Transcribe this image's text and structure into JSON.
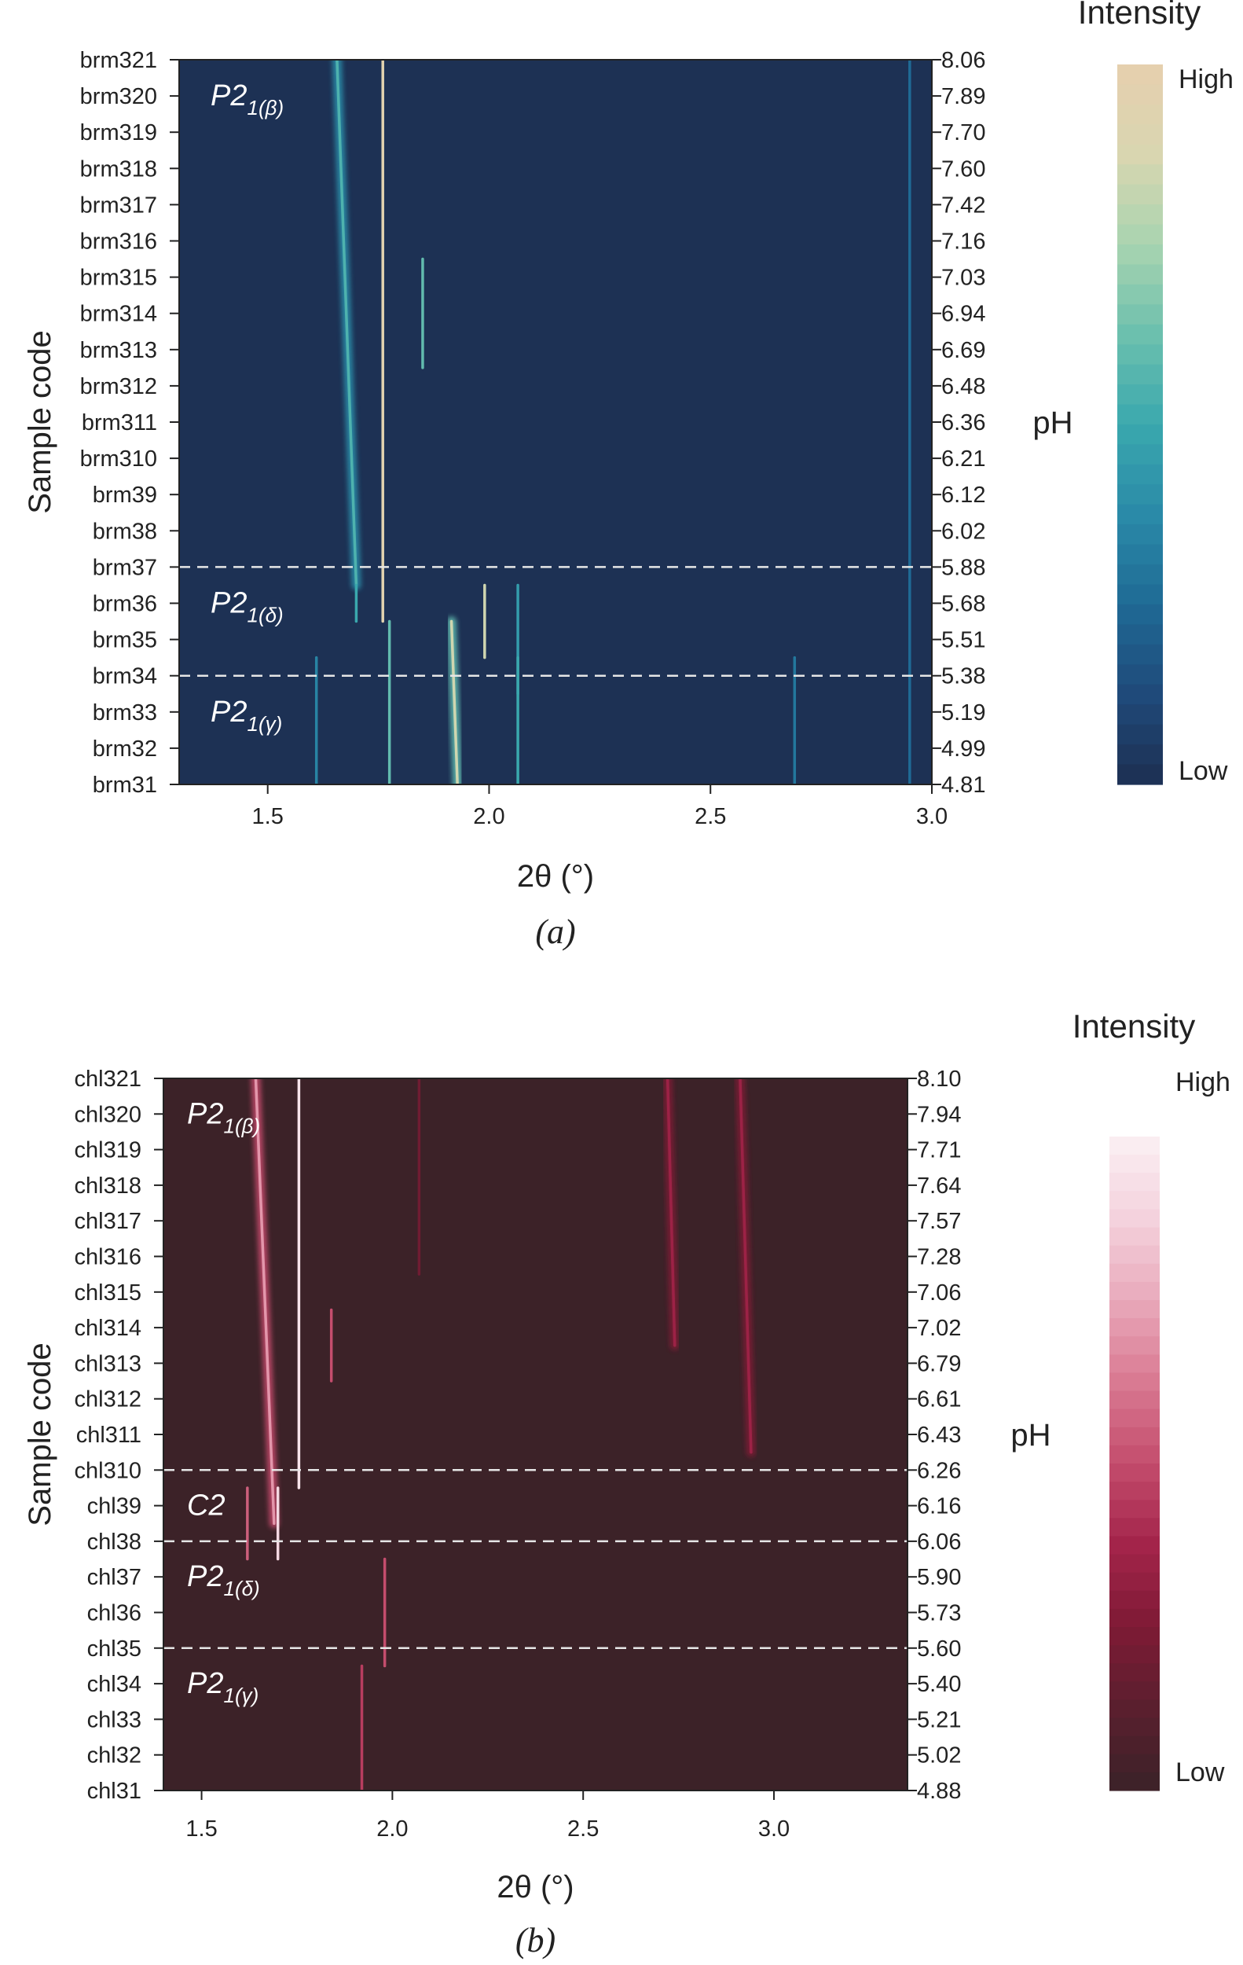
{
  "chart_data": [
    {
      "type": "heatmap",
      "panel_label": "(a)",
      "xlabel": "2θ (°)",
      "ylabel_left": "Sample code",
      "ylabel_right": "pH",
      "xlim": [
        1.3,
        3.0
      ],
      "xticks": [
        "1.5",
        "2.0",
        "2.5",
        "3.0"
      ],
      "xtick_values": [
        1.5,
        2.0,
        2.5,
        3.0
      ],
      "samples": [
        "brm321",
        "brm320",
        "brm319",
        "brm318",
        "brm317",
        "brm316",
        "brm315",
        "brm314",
        "brm313",
        "brm312",
        "brm311",
        "brm310",
        "brm39",
        "brm38",
        "brm37",
        "brm36",
        "brm35",
        "brm34",
        "brm33",
        "brm32",
        "brm31"
      ],
      "ph": [
        "8.06",
        "7.89",
        "7.70",
        "7.60",
        "7.42",
        "7.16",
        "7.03",
        "6.94",
        "6.69",
        "6.48",
        "6.36",
        "6.21",
        "6.12",
        "6.02",
        "5.88",
        "5.68",
        "5.51",
        "5.38",
        "5.19",
        "4.99",
        "4.81"
      ],
      "phase_boundaries": [
        "brm37",
        "brm34"
      ],
      "region_labels": [
        {
          "main": "P2",
          "sub": "1(β)",
          "row": "brm320"
        },
        {
          "main": "P2",
          "sub": "1(δ)",
          "row": "brm36"
        },
        {
          "main": "P2",
          "sub": "1(γ)",
          "row": "brm33"
        }
      ],
      "colorbar": {
        "title": "Intensity",
        "high_label": "High",
        "low_label": "Low",
        "colors": [
          "#1d2f52",
          "#1f4a7a",
          "#1f6a95",
          "#2a8aa8",
          "#3aa8ae",
          "#6cc0ae",
          "#a9d4b0",
          "#d9d6b0",
          "#e7cfae"
        ]
      },
      "background_color": "#1d3154",
      "peaks": [
        {
          "from": "brm321",
          "to": "brm37",
          "x_top": 1.655,
          "x_bottom": 1.7,
          "intensity": 0.55
        },
        {
          "from": "brm321",
          "to": "brm36",
          "x_top": 1.76,
          "x_bottom": 1.76,
          "intensity": 0.95
        },
        {
          "from": "brm315",
          "to": "brm313",
          "x_top": 1.85,
          "x_bottom": 1.85,
          "intensity": 0.6
        },
        {
          "from": "brm36",
          "to": "brm36",
          "x_top": 1.7,
          "x_bottom": 1.7,
          "intensity": 0.5
        },
        {
          "from": "brm36",
          "to": "brm35",
          "x_top": 1.99,
          "x_bottom": 1.99,
          "intensity": 0.85
        },
        {
          "from": "brm36",
          "to": "brm34",
          "x_top": 2.065,
          "x_bottom": 2.065,
          "intensity": 0.45
        },
        {
          "from": "brm35",
          "to": "brm31",
          "x_top": 1.915,
          "x_bottom": 1.93,
          "intensity": 0.85
        },
        {
          "from": "brm35",
          "to": "brm31",
          "x_top": 1.775,
          "x_bottom": 1.775,
          "intensity": 0.6
        },
        {
          "from": "brm34",
          "to": "brm31",
          "x_top": 1.61,
          "x_bottom": 1.61,
          "intensity": 0.35
        },
        {
          "from": "brm34",
          "to": "brm31",
          "x_top": 2.065,
          "x_bottom": 2.065,
          "intensity": 0.5
        },
        {
          "from": "brm34",
          "to": "brm31",
          "x_top": 2.69,
          "x_bottom": 2.69,
          "intensity": 0.3
        },
        {
          "from": "brm321",
          "to": "brm31",
          "x_top": 2.95,
          "x_bottom": 2.95,
          "intensity": 0.25
        }
      ]
    },
    {
      "type": "heatmap",
      "panel_label": "(b)",
      "xlabel": "2θ (°)",
      "ylabel_left": "Sample code",
      "ylabel_right": "pH",
      "xlim": [
        1.4,
        3.35
      ],
      "xticks": [
        "1.5",
        "2.0",
        "2.5",
        "3.0"
      ],
      "xtick_values": [
        1.5,
        2.0,
        2.5,
        3.0
      ],
      "samples": [
        "chl321",
        "chl320",
        "chl319",
        "chl318",
        "chl317",
        "chl316",
        "chl315",
        "chl314",
        "chl313",
        "chl312",
        "chl311",
        "chl310",
        "chl39",
        "chl38",
        "chl37",
        "chl36",
        "chl35",
        "chl34",
        "chl33",
        "chl32",
        "chl31"
      ],
      "ph": [
        "8.10",
        "7.94",
        "7.71",
        "7.64",
        "7.57",
        "7.28",
        "7.06",
        "7.02",
        "6.79",
        "6.61",
        "6.43",
        "6.26",
        "6.16",
        "6.06",
        "5.90",
        "5.73",
        "5.60",
        "5.40",
        "5.21",
        "5.02",
        "4.88"
      ],
      "phase_boundaries": [
        "chl310",
        "chl38",
        "chl35"
      ],
      "region_labels": [
        {
          "main": "P2",
          "sub": "1(β)",
          "row": "chl320"
        },
        {
          "main": "C2",
          "sub": "",
          "row": "chl39"
        },
        {
          "main": "P2",
          "sub": "1(δ)",
          "row": "chl37"
        },
        {
          "main": "P2",
          "sub": "1(γ)",
          "row": "chl34"
        }
      ],
      "colorbar": {
        "title": "Intensity",
        "high_label": "High",
        "low_label": "Low",
        "colors": [
          "#3a2228",
          "#5a1f2e",
          "#7e1a35",
          "#a3244a",
          "#c44d6d",
          "#d97a92",
          "#e9a9bb",
          "#f4d2dd",
          "#fbf0f4"
        ]
      },
      "background_color": "#3c2228",
      "peaks": [
        {
          "from": "chl321",
          "to": "chl39",
          "x_top": 1.64,
          "x_bottom": 1.69,
          "intensity": 0.7
        },
        {
          "from": "chl321",
          "to": "chl310",
          "x_top": 1.755,
          "x_bottom": 1.755,
          "intensity": 0.95
        },
        {
          "from": "chl314",
          "to": "chl313",
          "x_top": 1.84,
          "x_bottom": 1.84,
          "intensity": 0.5
        },
        {
          "from": "chl39",
          "to": "chl38",
          "x_top": 1.7,
          "x_bottom": 1.7,
          "intensity": 0.9
        },
        {
          "from": "chl39",
          "to": "chl38",
          "x_top": 1.62,
          "x_bottom": 1.62,
          "intensity": 0.55
        },
        {
          "from": "chl37",
          "to": "chl35",
          "x_top": 1.98,
          "x_bottom": 1.98,
          "intensity": 0.5
        },
        {
          "from": "chl34",
          "to": "chl31",
          "x_top": 1.92,
          "x_bottom": 1.92,
          "intensity": 0.45
        },
        {
          "from": "chl321",
          "to": "chl314",
          "x_top": 2.72,
          "x_bottom": 2.74,
          "intensity": 0.35
        },
        {
          "from": "chl321",
          "to": "chl311",
          "x_top": 2.91,
          "x_bottom": 2.94,
          "intensity": 0.35
        },
        {
          "from": "chl321",
          "to": "chl316",
          "x_top": 2.07,
          "x_bottom": 2.07,
          "intensity": 0.2
        }
      ]
    }
  ]
}
